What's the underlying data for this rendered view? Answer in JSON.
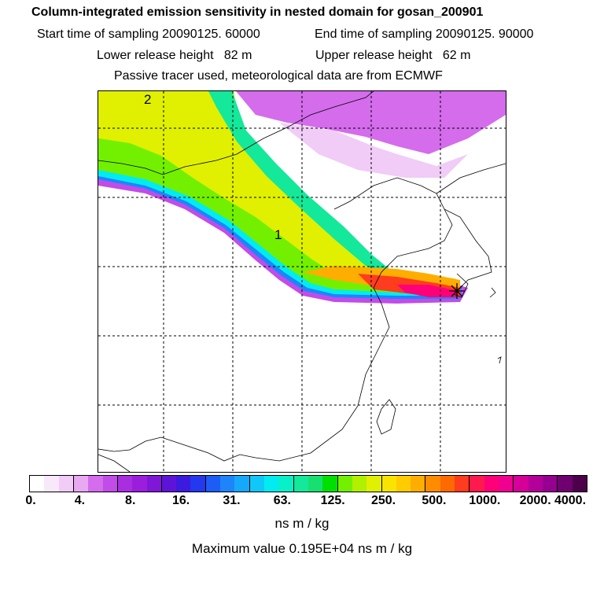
{
  "header": {
    "title": "Column-integrated emission sensitivity in nested domain for gosan_200901",
    "start_time": "Start time of sampling 20090125. 60000",
    "end_time": "End time of sampling 20090125. 90000",
    "lower_release": "Lower release height   82 m",
    "upper_release": "Upper release height   62 m",
    "tracer_info": "Passive tracer used, meteorological data are from ECMWF"
  },
  "map": {
    "labels": [
      "1",
      "2"
    ],
    "receptor_marker": "star"
  },
  "legend": {
    "colors": [
      "#ffffff",
      "#f8e8fa",
      "#f0ccf6",
      "#e8a8f2",
      "#d46cec",
      "#c24ce8",
      "#a82ee0",
      "#9a1edc",
      "#7f16d8",
      "#5e14d6",
      "#3c1ae0",
      "#2438ee",
      "#1e5cf6",
      "#1e84fa",
      "#16a8fa",
      "#10c8f8",
      "#00ecf0",
      "#08f0c8",
      "#14e89a",
      "#18e070",
      "#00e000",
      "#72f000",
      "#b0f000",
      "#e0f000",
      "#f8e400",
      "#ffcc00",
      "#ffae00",
      "#ff8c00",
      "#ff6a00",
      "#ff3c1e",
      "#ff1a4e",
      "#ff0078",
      "#f00090",
      "#d40098",
      "#b4009a",
      "#960090",
      "#700070",
      "#4c004c"
    ],
    "ticks": [
      "0.",
      "4.",
      "8.",
      "16.",
      "31.",
      "63.",
      "125.",
      "250.",
      "500.",
      "1000.",
      "2000.",
      "4000."
    ],
    "units": "ns m / kg",
    "max_value": "Maximum value  0.195E+04 ns m / kg"
  }
}
